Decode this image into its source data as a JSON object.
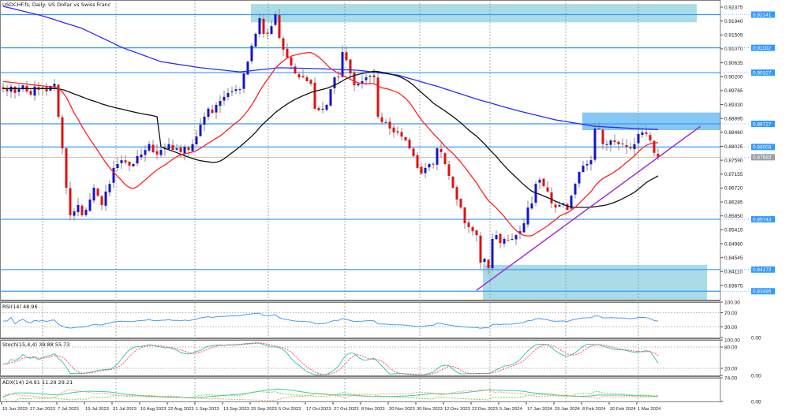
{
  "title": "USDCHF.fs, Daily:  US Dollar vs Swiss Franc",
  "chart_data": {
    "type": "candlestick",
    "title": "USDCHF.fs, Daily:  US Dollar vs Swiss Franc",
    "price_ticks": [
      "0.92375",
      "0.91940",
      "0.91505",
      "0.91070",
      "0.90635",
      "0.90200",
      "0.89765",
      "0.89330",
      "0.88895",
      "0.88460",
      "0.88025",
      "0.87590",
      "0.87155",
      "0.86720",
      "0.86285",
      "0.85850",
      "0.85415",
      "0.84980",
      "0.84545",
      "0.84110",
      "0.83675"
    ],
    "horizontal_levels": [
      "0.92141",
      "0.91102",
      "0.90327",
      "0.88727",
      "0.88003",
      "0.85743",
      "0.84172",
      "0.83495"
    ],
    "current_price": "0.87683",
    "date_labels": [
      "15 Jun 2023",
      "27 Jun 2023",
      "7 Jul 2023",
      "19 Jul 2023",
      "31 Jul 2023",
      "10 Aug 2023",
      "22 Aug 2023",
      "1 Sep 2023",
      "13 Sep 2023",
      "25 Sep 2023",
      "5 Oct 2023",
      "17 Oct 2023",
      "27 Oct 2023",
      "8 Nov 2023",
      "20 Nov 2023",
      "30 Nov 2023",
      "12 Dec 2023",
      "22 Dec 2023",
      "5 Jan 2024",
      "17 Jan 2024",
      "29 Jan 2024",
      "8 Feb 2024",
      "20 Feb 2024",
      "1 Mar 2024"
    ],
    "closes": [
      0.8981,
      0.8974,
      0.8989,
      0.8969,
      0.8981,
      0.8993,
      0.8974,
      0.8964,
      0.8989,
      0.8979,
      0.8986,
      0.8974,
      0.8991,
      0.8998,
      0.8895,
      0.8796,
      0.8673,
      0.8587,
      0.8599,
      0.8619,
      0.8587,
      0.8604,
      0.8636,
      0.8673,
      0.8648,
      0.8619,
      0.8661,
      0.8685,
      0.8735,
      0.8747,
      0.8759,
      0.8752,
      0.8742,
      0.8747,
      0.8772,
      0.8777,
      0.8791,
      0.8809,
      0.8784,
      0.8777,
      0.8791,
      0.8796,
      0.8809,
      0.8791,
      0.8796,
      0.8784,
      0.8801,
      0.8791,
      0.8809,
      0.8833,
      0.887,
      0.8895,
      0.892,
      0.8907,
      0.8932,
      0.8944,
      0.8957,
      0.8969,
      0.8974,
      0.8981,
      0.8981,
      0.903,
      0.9067,
      0.9117,
      0.9154,
      0.9203,
      0.9154,
      0.9154,
      0.9178,
      0.9215,
      0.9141,
      0.9104,
      0.908,
      0.9055,
      0.903,
      0.9018,
      0.9018,
      0.9006,
      0.8998,
      0.892,
      0.8915,
      0.892,
      0.8932,
      0.8981,
      0.9018,
      0.9018,
      0.9097,
      0.9072,
      0.903,
      0.8993,
      0.8998,
      0.9006,
      0.9018,
      0.9023,
      0.9018,
      0.8895,
      0.8878,
      0.8878,
      0.8858,
      0.8846,
      0.8846,
      0.8833,
      0.8821,
      0.8796,
      0.8772,
      0.8735,
      0.8717,
      0.8735,
      0.8747,
      0.8747,
      0.8796,
      0.8784,
      0.8747,
      0.871,
      0.8673,
      0.8636,
      0.8611,
      0.8562,
      0.855,
      0.8537,
      0.8525,
      0.8439,
      0.8451,
      0.8422,
      0.8513,
      0.8525,
      0.85,
      0.8513,
      0.851,
      0.8513,
      0.8525,
      0.8537,
      0.8562,
      0.8611,
      0.8624,
      0.8685,
      0.8698,
      0.8678,
      0.8661,
      0.8624,
      0.8611,
      0.8619,
      0.8624,
      0.8604,
      0.8648,
      0.8685,
      0.8722,
      0.8742,
      0.8747,
      0.8759,
      0.8858,
      0.8858,
      0.8809,
      0.8809,
      0.8821,
      0.8816,
      0.8809,
      0.8809,
      0.8801,
      0.8796,
      0.8809,
      0.8841,
      0.8846,
      0.8841,
      0.8821,
      0.8782,
      0.8768
    ],
    "ma_slow_every10": [
      0.924,
      0.921,
      0.9171,
      0.9112,
      0.9067,
      0.9048,
      0.9035,
      0.9048,
      0.9045,
      0.904,
      0.9025,
      0.899,
      0.895,
      0.8915,
      0.8885,
      0.8865,
      0.8858,
      0.8855
    ],
    "zones": [
      {
        "from": 0.919,
        "to": 0.9247,
        "color": "#a9dce6"
      },
      {
        "from": 0.8853,
        "to": 0.8908,
        "color": "#86c8f4"
      },
      {
        "from": 0.83,
        "to": 0.8432,
        "color": "#a9dce6"
      }
    ],
    "colors": {
      "bull": "#1414c8",
      "bear": "#e01010",
      "wick": "#8a8a8a",
      "level_line": "#3399ff",
      "level_label_bg": "#3399ff",
      "current_line": "#c0c0c0",
      "current_label_bg": "#9aa0a8",
      "ma_fast": "#ff2020",
      "ma_mid": "#101010",
      "ma_slow": "#2a2aff",
      "trendline": "#a030d8",
      "grid": "#888888"
    },
    "indicators": {
      "rsi": {
        "label": "RSI(14) 48.96",
        "levels": [
          "100.00",
          "70.00",
          "30.00",
          "0.00"
        ],
        "color": "#4a9cf0"
      },
      "stoch": {
        "label": "Stoch(15,4,4) 39.88 55.73",
        "levels": [
          "100.00",
          "80.00",
          "20.00",
          "0.00"
        ],
        "main_color": "#3cc8b4",
        "signal_color": "#ff5050"
      },
      "adx": {
        "label": "ADX(14) 24.91 11.29 29.21",
        "levels": [
          "74.00",
          "0.00"
        ],
        "adx_color": "#3cc8b4",
        "plus_di_color": "#7ccf3c",
        "minus_di_color": "#f0a060"
      }
    }
  }
}
